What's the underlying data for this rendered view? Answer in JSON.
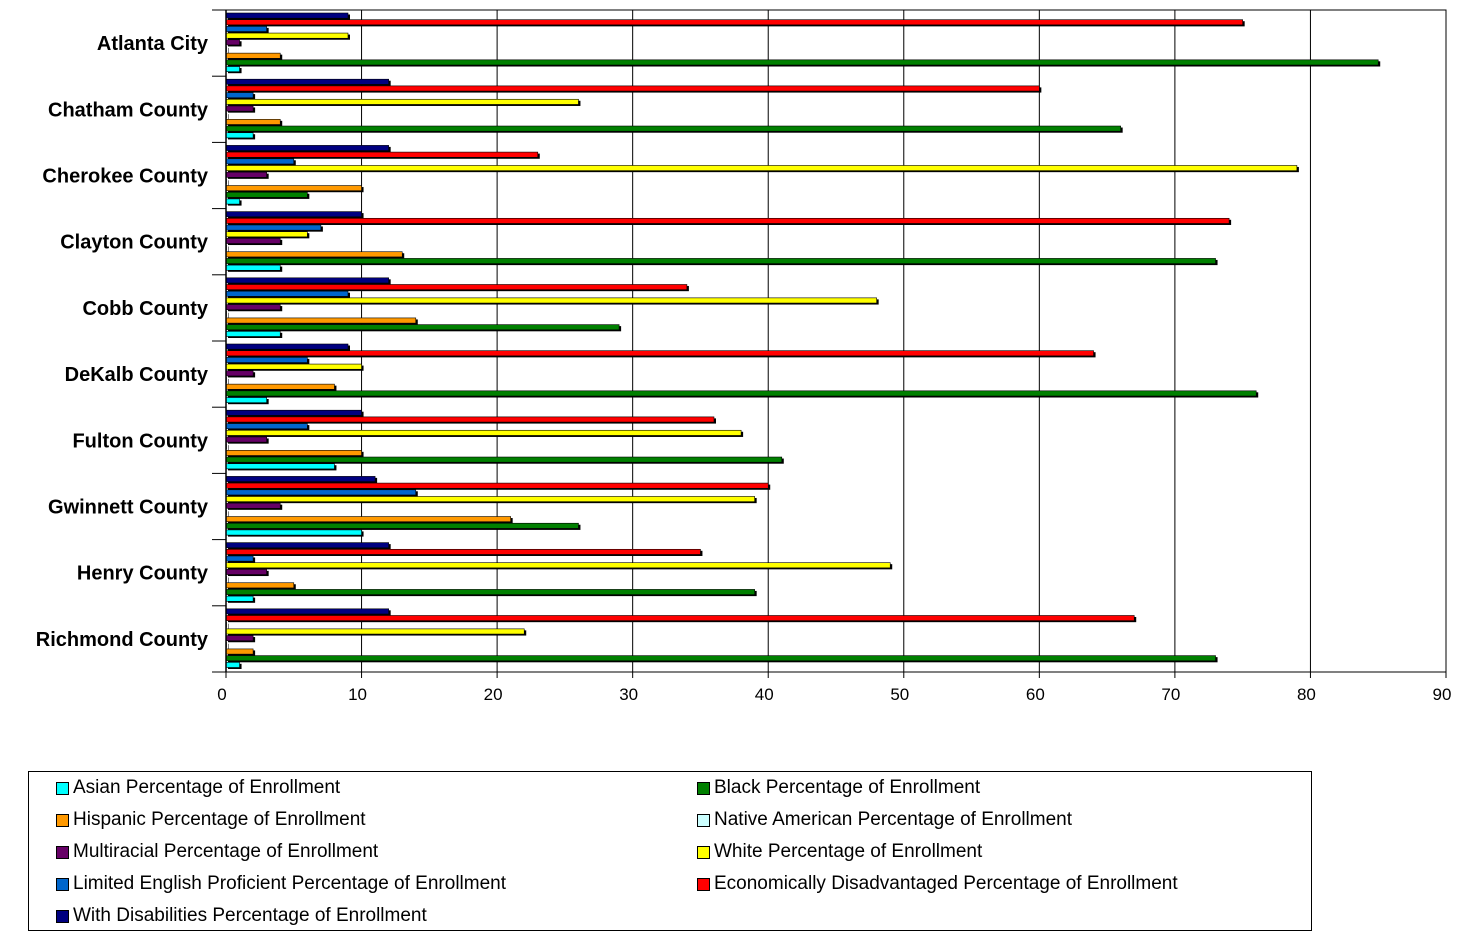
{
  "chart_data": {
    "type": "bar",
    "orientation": "horizontal",
    "title": "",
    "xlabel": "",
    "ylabel": "",
    "xlim": [
      0,
      90
    ],
    "xticks": [
      0,
      10,
      20,
      30,
      40,
      50,
      60,
      70,
      80,
      90
    ],
    "grid": true,
    "legend_position": "bottom",
    "categories": [
      "Atlanta City",
      "Chatham County",
      "Cherokee County",
      "Clayton County",
      "Cobb County",
      "DeKalb County",
      "Fulton County",
      "Gwinnett County",
      "Henry County",
      "Richmond County"
    ],
    "series": [
      {
        "name": "With Disabilities Percentage of Enrollment",
        "color": "#000080",
        "values": [
          9,
          12,
          12,
          10,
          12,
          9,
          10,
          11,
          12,
          12
        ]
      },
      {
        "name": "Economically Disadvantaged Percentage of Enrollment",
        "color": "#ff0000",
        "values": [
          75,
          60,
          23,
          74,
          34,
          64,
          36,
          40,
          35,
          67
        ]
      },
      {
        "name": "Limited English Proficient Percentage of Enrollment",
        "color": "#0066cc",
        "values": [
          3,
          2,
          5,
          7,
          9,
          6,
          6,
          14,
          2,
          0
        ]
      },
      {
        "name": "White Percentage of Enrollment",
        "color": "#ffff00",
        "values": [
          9,
          26,
          79,
          6,
          48,
          10,
          38,
          39,
          49,
          22
        ]
      },
      {
        "name": "Multiracial Percentage of Enrollment",
        "color": "#660066",
        "values": [
          1,
          2,
          3,
          4,
          4,
          2,
          3,
          4,
          3,
          2
        ]
      },
      {
        "name": "Native American Percentage of Enrollment",
        "color": "#ccffff",
        "values": [
          0,
          0,
          0,
          0,
          0,
          0,
          0,
          0,
          0,
          0
        ]
      },
      {
        "name": "Hispanic Percentage of Enrollment",
        "color": "#ff9900",
        "values": [
          4,
          4,
          10,
          13,
          14,
          8,
          10,
          21,
          5,
          2
        ]
      },
      {
        "name": "Black Percentage of Enrollment",
        "color": "#008000",
        "values": [
          85,
          66,
          6,
          73,
          29,
          76,
          41,
          26,
          39,
          73
        ]
      },
      {
        "name": "Asian Percentage of Enrollment",
        "color": "#00ffff",
        "values": [
          1,
          2,
          1,
          4,
          4,
          3,
          8,
          10,
          2,
          1
        ]
      }
    ],
    "legend_order": [
      "Asian Percentage of Enrollment",
      "Black Percentage of Enrollment",
      "Hispanic Percentage of Enrollment",
      "Native American Percentage of Enrollment",
      "Multiracial Percentage of Enrollment",
      "White Percentage of Enrollment",
      "Limited English Proficient Percentage of Enrollment",
      "Economically Disadvantaged Percentage of Enrollment",
      "With Disabilities Percentage of Enrollment"
    ]
  }
}
